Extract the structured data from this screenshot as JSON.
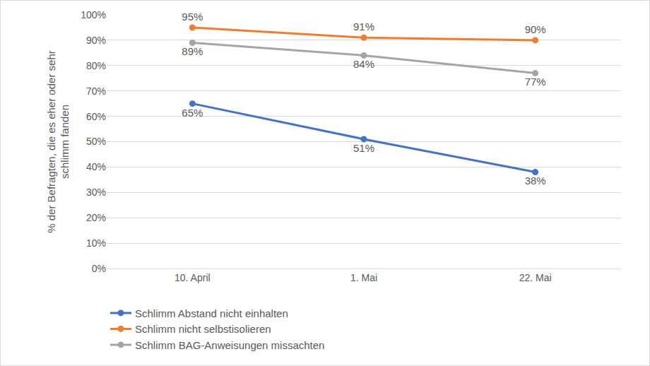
{
  "chart_data": {
    "type": "line",
    "y_label": "% der Befragten, die es eher oder sehr schlimm fanden",
    "categories": [
      "10. April",
      "1. Mai",
      "22. Mai"
    ],
    "series": [
      {
        "name": "Schlimm Abstand nicht einhalten",
        "color": "#4472c4",
        "values": [
          65,
          51,
          38
        ],
        "value_labels": [
          "65%",
          "51%",
          "38%"
        ]
      },
      {
        "name": "Schlimm nicht selbstisolieren",
        "color": "#ed7d31",
        "values": [
          95,
          91,
          90
        ],
        "value_labels": [
          "95%",
          "91%",
          "90%"
        ]
      },
      {
        "name": "Schlimm BAG-Anweisungen missachten",
        "color": "#a5a5a5",
        "values": [
          89,
          84,
          77
        ],
        "value_labels": [
          "89%",
          "84%",
          "77%"
        ]
      }
    ],
    "ylim": [
      0,
      100
    ],
    "yticks": [
      {
        "value": 0,
        "label": "0%"
      },
      {
        "value": 10,
        "label": "10%"
      },
      {
        "value": 20,
        "label": "20%"
      },
      {
        "value": 30,
        "label": "30%"
      },
      {
        "value": 40,
        "label": "40%"
      },
      {
        "value": 50,
        "label": "50%"
      },
      {
        "value": 60,
        "label": "60%"
      },
      {
        "value": 70,
        "label": "70%"
      },
      {
        "value": 80,
        "label": "80%"
      },
      {
        "value": 90,
        "label": "90%"
      },
      {
        "value": 100,
        "label": "100%"
      }
    ],
    "grid": true,
    "legend": "bottom",
    "data_labels": true,
    "marker": "circle",
    "line_style": "solid"
  }
}
